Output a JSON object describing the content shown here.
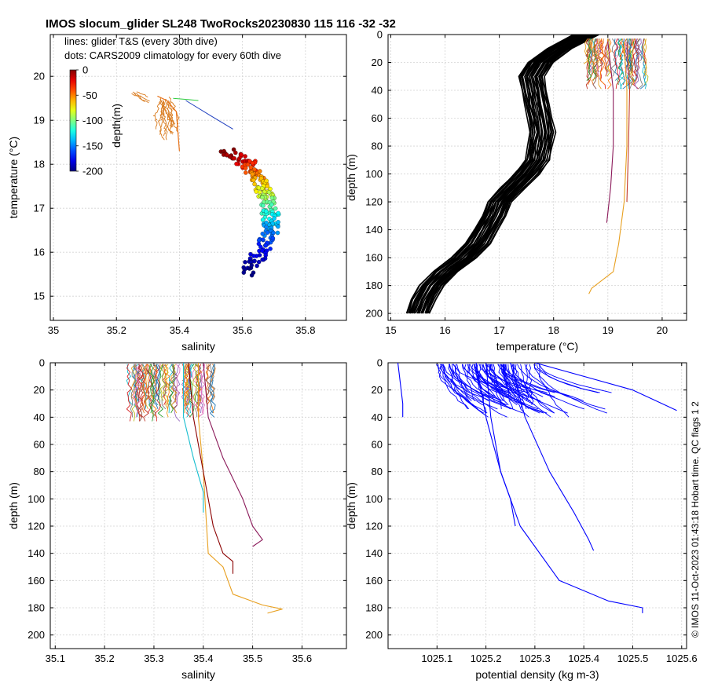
{
  "figure": {
    "title": "IMOS slocum_glider SL248 TwoRocks20230830 115  116  -32  -32",
    "credit": "© IMOS 11-Oct-2023 01:43:18 Hobart time. QC flags 1  2"
  },
  "colors": {
    "grid": "#d4d4d4",
    "frame": "#000000",
    "density_line": "#0000ff",
    "temperature_line": "#000000",
    "accent_orange": "#e8731a"
  },
  "chart_data": [
    {
      "id": "ts",
      "type": "scatter",
      "title": "",
      "xlabel": "salinity",
      "ylabel": "temperature (°C)",
      "xlim": [
        34.99,
        35.93
      ],
      "ylim": [
        14.45,
        20.95
      ],
      "xticks": [
        35,
        35.2,
        35.4,
        35.6,
        35.8
      ],
      "xticklabels": [
        "35",
        "35.2",
        "35.4",
        "35.6",
        "35.8"
      ],
      "yticks": [
        15,
        16,
        17,
        18,
        19,
        20
      ],
      "yticklabels": [
        "15",
        "16",
        "17",
        "18",
        "19",
        "20"
      ],
      "legend_lines": [
        "lines: glider T&S (every 30th dive)",
        "dots: CARS2009 climatology for every 60th dive"
      ],
      "colorbar": {
        "label": "depth(m)",
        "ticks": [
          0,
          -50,
          -100,
          -150,
          -200
        ],
        "ticklabels": [
          "0",
          "-50",
          "-100",
          "-150",
          "-200"
        ],
        "range": [
          -200,
          0
        ]
      },
      "climatology_depths": [
        0,
        -10,
        -20,
        -30,
        -40,
        -50,
        -75,
        -100,
        -125,
        -150,
        -175,
        -200
      ],
      "climatology_salinity": [
        35.55,
        35.57,
        35.6,
        35.62,
        35.63,
        35.65,
        35.67,
        35.68,
        35.69,
        35.69,
        35.66,
        35.62
      ],
      "climatology_temperature": [
        18.25,
        18.18,
        18.1,
        18.0,
        17.9,
        17.75,
        17.45,
        17.15,
        16.8,
        16.45,
        16.0,
        15.55
      ],
      "glider_line_salinity": [
        35.33,
        35.36,
        35.39,
        35.4
      ],
      "glider_line_temperature": [
        19.55,
        19.45,
        19.2,
        18.3
      ]
    },
    {
      "id": "temp-depth",
      "type": "line",
      "xlabel": "temperature (°C)",
      "ylabel": "depth (m)",
      "xlim": [
        14.95,
        20.45
      ],
      "ylim": [
        0,
        205
      ],
      "y_reversed": true,
      "xticks": [
        15,
        16,
        17,
        18,
        19,
        20
      ],
      "xticklabels": [
        "15",
        "16",
        "17",
        "18",
        "19",
        "20"
      ],
      "yticks": [
        0,
        20,
        40,
        60,
        80,
        100,
        120,
        140,
        160,
        180,
        200
      ],
      "yticklabels": [
        "0",
        "20",
        "40",
        "60",
        "80",
        "100",
        "120",
        "140",
        "160",
        "180",
        "200"
      ],
      "climatology_depth": [
        0,
        10,
        20,
        30,
        40,
        50,
        60,
        70,
        80,
        90,
        100,
        110,
        120,
        130,
        140,
        150,
        160,
        170,
        180,
        190,
        200
      ],
      "climatology_temperature": [
        18.6,
        18.1,
        17.75,
        17.6,
        17.65,
        17.7,
        17.75,
        17.8,
        17.75,
        17.7,
        17.5,
        17.25,
        17.0,
        16.9,
        16.75,
        16.6,
        16.35,
        16.0,
        15.75,
        15.6,
        15.5
      ],
      "climatology_spread": 0.45,
      "glider_series": [
        {
          "color": "#e8a020",
          "depth": [
            5,
            40,
            80,
            120,
            150,
            170,
            182,
            186
          ],
          "temperature": [
            19.3,
            19.35,
            19.35,
            19.3,
            19.2,
            19.1,
            18.7,
            18.65
          ]
        },
        {
          "color": "#8b1a5a",
          "depth": [
            5,
            40,
            80,
            110,
            135
          ],
          "temperature": [
            19.0,
            19.1,
            19.1,
            19.05,
            18.98
          ]
        },
        {
          "color": "#c0392b",
          "depth": [
            5,
            40,
            80,
            120
          ],
          "temperature": [
            19.35,
            19.4,
            19.38,
            19.35
          ]
        }
      ]
    },
    {
      "id": "sal-depth",
      "type": "line",
      "xlabel": "salinity",
      "ylabel": "depth (m)",
      "xlim": [
        35.09,
        35.69
      ],
      "ylim": [
        0,
        210
      ],
      "y_reversed": true,
      "xticks": [
        35.1,
        35.2,
        35.3,
        35.4,
        35.5,
        35.6
      ],
      "xticklabels": [
        "35.1",
        "35.2",
        "35.3",
        "35.4",
        "35.5",
        "35.6"
      ],
      "yticks": [
        0,
        20,
        40,
        60,
        80,
        100,
        120,
        140,
        160,
        180,
        200
      ],
      "yticklabels": [
        "0",
        "20",
        "40",
        "60",
        "80",
        "100",
        "120",
        "140",
        "160",
        "180",
        "200"
      ],
      "glider_series": [
        {
          "color": "#e8a020",
          "depth": [
            0,
            40,
            80,
            140,
            150,
            170,
            178,
            181,
            184
          ],
          "salinity": [
            35.39,
            35.39,
            35.4,
            35.41,
            35.44,
            35.46,
            35.52,
            35.56,
            35.53
          ]
        },
        {
          "color": "#8b1a5a",
          "depth": [
            0,
            40,
            70,
            100,
            120,
            130,
            135
          ],
          "salinity": [
            35.4,
            35.41,
            35.44,
            35.48,
            35.5,
            35.52,
            35.5
          ]
        },
        {
          "color": "#8b0000",
          "depth": [
            0,
            40,
            80,
            120,
            140,
            146,
            155
          ],
          "salinity": [
            35.37,
            35.38,
            35.4,
            35.42,
            35.44,
            35.46,
            35.46
          ]
        },
        {
          "color": "#17becf",
          "depth": [
            0,
            40,
            70,
            95,
            110
          ],
          "salinity": [
            35.36,
            35.36,
            35.38,
            35.4,
            35.4
          ]
        }
      ]
    },
    {
      "id": "dens-depth",
      "type": "line",
      "xlabel": "potential density (kg m-3)",
      "ylabel": "depth (m)",
      "xlim": [
        1025.0,
        1025.61
      ],
      "ylim": [
        0,
        210
      ],
      "y_reversed": true,
      "xticks": [
        1025.1,
        1025.2,
        1025.3,
        1025.4,
        1025.5,
        1025.6
      ],
      "xticklabels": [
        "1025.1",
        "1025.2",
        "1025.3",
        "1025.4",
        "1025.5",
        "1025.6"
      ],
      "yticks": [
        0,
        20,
        40,
        60,
        80,
        100,
        120,
        140,
        160,
        180,
        200
      ],
      "yticklabels": [
        "0",
        "20",
        "40",
        "60",
        "80",
        "100",
        "120",
        "140",
        "160",
        "180",
        "200"
      ],
      "glider_series": [
        {
          "depth": [
            0,
            40,
            80,
            120,
            160,
            175,
            180,
            184
          ],
          "density": [
            1025.2,
            1025.21,
            1025.23,
            1025.27,
            1025.35,
            1025.45,
            1025.52,
            1025.52
          ]
        },
        {
          "depth": [
            0,
            40,
            80,
            110,
            130,
            138
          ],
          "density": [
            1025.25,
            1025.28,
            1025.33,
            1025.38,
            1025.41,
            1025.42
          ]
        },
        {
          "depth": [
            0,
            40,
            80,
            100,
            120
          ],
          "density": [
            1025.18,
            1025.2,
            1025.23,
            1025.25,
            1025.26
          ]
        },
        {
          "depth": [
            0,
            20,
            35
          ],
          "density": [
            1025.3,
            1025.5,
            1025.59
          ]
        },
        {
          "depth": [
            0,
            30,
            40
          ],
          "density": [
            1025.02,
            1025.03,
            1025.03
          ]
        }
      ]
    }
  ]
}
